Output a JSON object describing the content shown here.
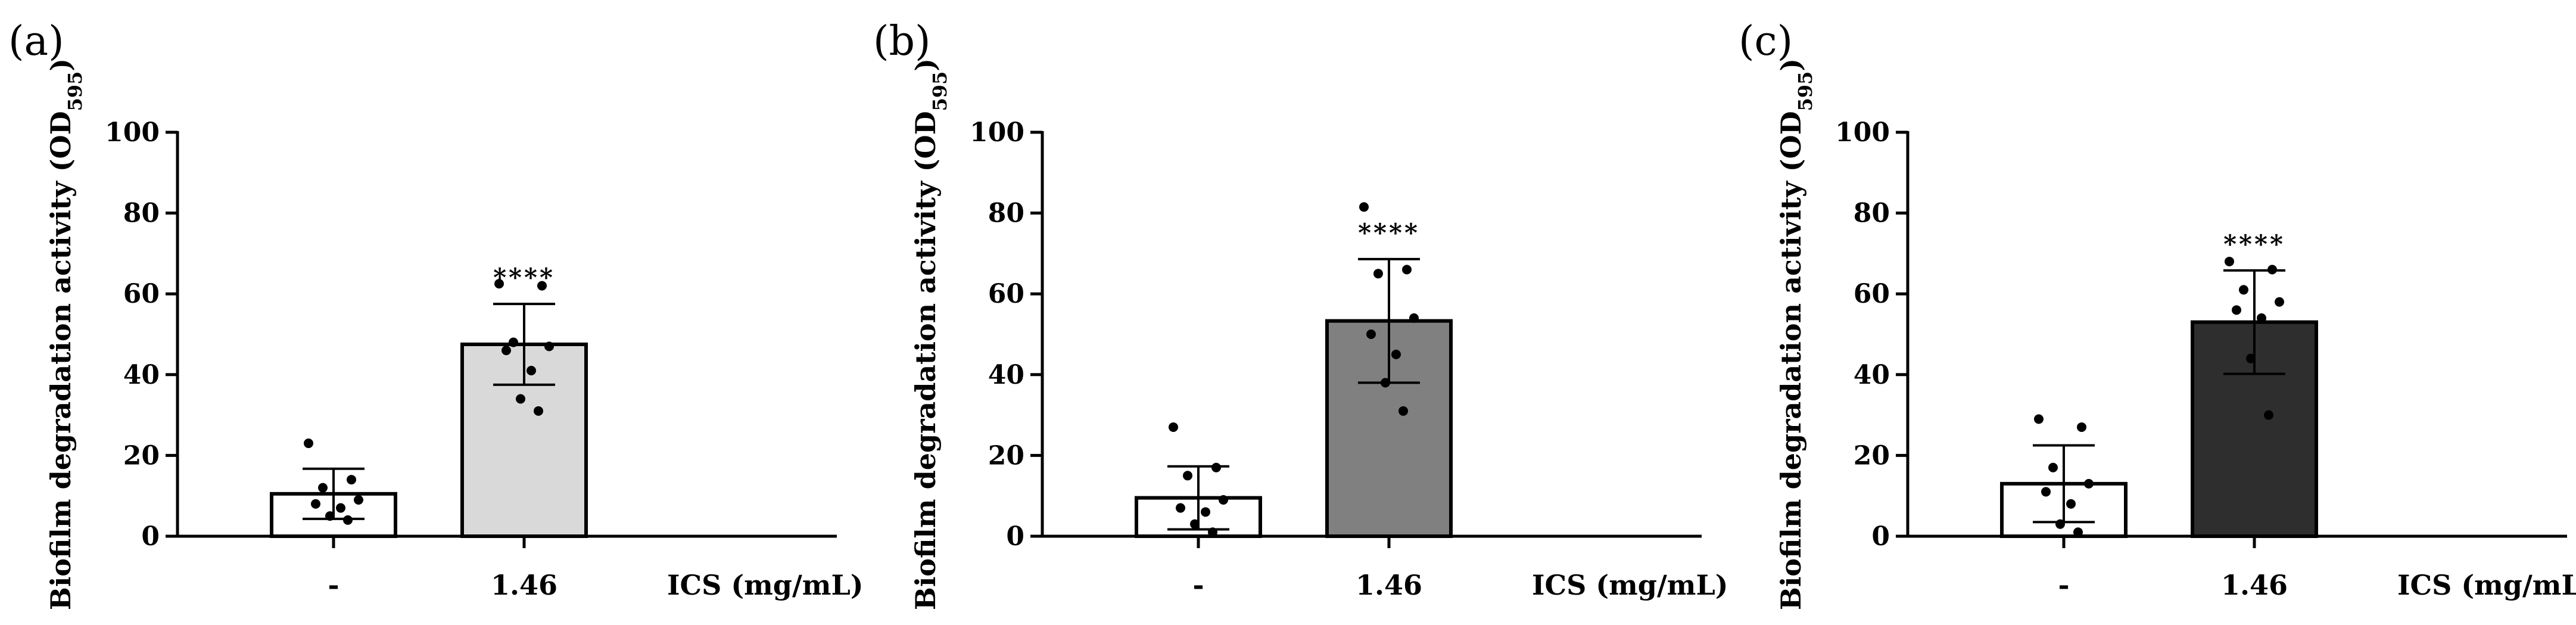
{
  "chart_data": [
    {
      "type": "bar",
      "panel_label": "(a)",
      "ylabel": "Biofilm degradation activity (OD595)",
      "ylabel_main": "Biofilm degradation activity (OD",
      "ylabel_sub": "595",
      "ylabel_end": ")",
      "xlabel": "ICS (mg/mL)",
      "categories": [
        "-",
        "1.46"
      ],
      "values": [
        10.5,
        47.5
      ],
      "error": [
        6.2,
        10.0
      ],
      "points": [
        [
          23,
          14,
          12,
          9,
          8,
          7,
          5,
          4
        ],
        [
          62.5,
          62,
          48,
          47,
          46,
          41,
          34,
          31
        ]
      ],
      "significance": [
        "",
        "****"
      ],
      "bar_colors": [
        "#ffffff",
        "#d9d9d9"
      ],
      "ylim": [
        0,
        100
      ],
      "yticks": [
        0,
        20,
        40,
        60,
        80,
        100
      ],
      "grid": false
    },
    {
      "type": "bar",
      "panel_label": "(b)",
      "ylabel": "Biofilm degradation activity (OD595)",
      "ylabel_main": "Biofilm degradation activity (OD",
      "ylabel_sub": "595",
      "ylabel_end": ")",
      "xlabel": "ICS (mg/mL)",
      "categories": [
        "-",
        "1.46"
      ],
      "values": [
        9.5,
        53.3
      ],
      "error": [
        7.8,
        15.3
      ],
      "points": [
        [
          27,
          17,
          15,
          9,
          7,
          6,
          3,
          1
        ],
        [
          81.5,
          66,
          65,
          54,
          50,
          45,
          38,
          31
        ]
      ],
      "significance": [
        "",
        "****"
      ],
      "bar_colors": [
        "#ffffff",
        "#808080"
      ],
      "ylim": [
        0,
        100
      ],
      "yticks": [
        0,
        20,
        40,
        60,
        80,
        100
      ],
      "grid": false
    },
    {
      "type": "bar",
      "panel_label": "(c)",
      "ylabel": "Biofilm degradation activity (OD595)",
      "ylabel_main": "Biofilm degradation activity (OD",
      "ylabel_sub": "595",
      "ylabel_end": ")",
      "xlabel": "ICS (mg/mL)",
      "categories": [
        "-",
        "1.46"
      ],
      "values": [
        13.0,
        53.0
      ],
      "error": [
        9.5,
        12.8
      ],
      "points": [
        [
          29,
          27,
          17,
          13,
          11,
          8,
          3,
          1
        ],
        [
          68,
          66,
          61,
          58,
          56,
          54,
          44,
          30
        ]
      ],
      "significance": [
        "",
        "****"
      ],
      "bar_colors": [
        "#ffffff",
        "#2e2e2e"
      ],
      "ylim": [
        0,
        100
      ],
      "yticks": [
        0,
        20,
        40,
        60,
        80,
        100
      ],
      "grid": false
    }
  ]
}
